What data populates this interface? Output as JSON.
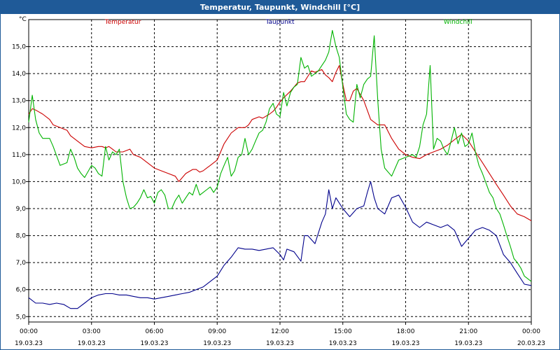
{
  "window": {
    "title": "Temperatur, Taupunkt, Windchill [°C]"
  },
  "chart_data": {
    "type": "line",
    "title": "Temperatur, Taupunkt, Windchill [°C]",
    "ylabel": "°C",
    "xlabel": "",
    "grid": true,
    "ylim": [
      4.8,
      16.0
    ],
    "xlim": [
      0,
      24
    ],
    "yticks": [
      "5,0",
      "6,0",
      "7,0",
      "8,0",
      "9,0",
      "10,0",
      "11,0",
      "12,0",
      "13,0",
      "14,0",
      "15,0"
    ],
    "xticks": [
      {
        "time": "00:00",
        "date": "19.03.23"
      },
      {
        "time": "03:00",
        "date": "19.03.23"
      },
      {
        "time": "06:00",
        "date": "19.03.23"
      },
      {
        "time": "09:00",
        "date": "19.03.23"
      },
      {
        "time": "12:00",
        "date": "19.03.23"
      },
      {
        "time": "15:00",
        "date": "19.03.23"
      },
      {
        "time": "18:00",
        "date": "19.03.23"
      },
      {
        "time": "21:00",
        "date": "19.03.23"
      },
      {
        "time": "00:00",
        "date": "20.03.23"
      }
    ],
    "series": [
      {
        "name": "Temperatur",
        "color": "#cc0000",
        "x": [
          0.0,
          0.17,
          0.33,
          0.67,
          1.0,
          1.17,
          1.5,
          1.83,
          2.0,
          2.33,
          2.67,
          3.0,
          3.33,
          3.5,
          3.67,
          3.83,
          4.0,
          4.17,
          4.5,
          4.83,
          5.0,
          5.33,
          5.67,
          6.0,
          6.33,
          6.67,
          7.0,
          7.17,
          7.5,
          7.83,
          8.0,
          8.17,
          8.33,
          8.5,
          8.67,
          9.0,
          9.33,
          9.5,
          9.67,
          10.0,
          10.33,
          10.5,
          10.67,
          11.0,
          11.17,
          11.5,
          11.67,
          11.83,
          12.0,
          12.17,
          12.5,
          12.67,
          12.83,
          13.0,
          13.17,
          13.33,
          13.5,
          13.67,
          13.83,
          14.0,
          14.17,
          14.33,
          14.5,
          14.67,
          14.83,
          15.0,
          15.17,
          15.33,
          15.5,
          15.67,
          16.0,
          16.33,
          16.67,
          16.83,
          17.0,
          17.33,
          17.67,
          18.0,
          18.33,
          18.67,
          19.0,
          19.33,
          19.67,
          20.0,
          20.33,
          20.67,
          21.0,
          21.33,
          21.67,
          22.0,
          22.33,
          22.67,
          23.0,
          23.33,
          23.67,
          24.0
        ],
        "y": [
          12.5,
          12.7,
          12.65,
          12.5,
          12.3,
          12.1,
          12.0,
          11.9,
          11.7,
          11.5,
          11.3,
          11.25,
          11.3,
          11.3,
          11.25,
          11.3,
          11.2,
          11.1,
          11.1,
          11.2,
          11.0,
          10.9,
          10.7,
          10.5,
          10.4,
          10.3,
          10.2,
          10.0,
          10.3,
          10.45,
          10.45,
          10.35,
          10.4,
          10.5,
          10.6,
          10.8,
          11.4,
          11.6,
          11.8,
          12.0,
          12.0,
          12.1,
          12.3,
          12.4,
          12.35,
          12.5,
          12.6,
          12.75,
          12.95,
          13.1,
          13.35,
          13.5,
          13.65,
          13.7,
          13.7,
          13.9,
          14.1,
          14.05,
          14.1,
          14.15,
          13.95,
          13.85,
          13.7,
          14.05,
          14.3,
          13.6,
          13.0,
          13.0,
          13.35,
          13.45,
          13.0,
          12.3,
          12.1,
          12.1,
          12.1,
          11.6,
          11.2,
          11.0,
          10.9,
          10.85,
          11.0,
          11.1,
          11.2,
          11.35,
          11.55,
          11.75,
          11.5,
          11.1,
          10.7,
          10.3,
          9.9,
          9.5,
          9.1,
          8.8,
          8.7,
          8.55
        ]
      },
      {
        "name": "Taupunkt",
        "color": "#00008b",
        "x": [
          0.0,
          0.33,
          0.67,
          1.0,
          1.33,
          1.67,
          2.0,
          2.33,
          2.67,
          3.0,
          3.33,
          3.67,
          4.0,
          4.33,
          4.67,
          5.0,
          5.33,
          5.67,
          6.0,
          6.33,
          6.67,
          7.0,
          7.33,
          7.67,
          8.0,
          8.33,
          8.67,
          9.0,
          9.33,
          9.67,
          10.0,
          10.33,
          10.67,
          11.0,
          11.33,
          11.67,
          12.0,
          12.17,
          12.33,
          12.67,
          13.0,
          13.17,
          13.33,
          13.67,
          14.0,
          14.17,
          14.33,
          14.5,
          14.67,
          15.0,
          15.33,
          15.67,
          16.0,
          16.17,
          16.33,
          16.5,
          16.67,
          17.0,
          17.33,
          17.67,
          18.0,
          18.33,
          18.67,
          19.0,
          19.33,
          19.67,
          20.0,
          20.33,
          20.67,
          21.0,
          21.33,
          21.67,
          22.0,
          22.33,
          22.67,
          23.0,
          23.33,
          23.67,
          24.0
        ],
        "y": [
          5.7,
          5.5,
          5.5,
          5.45,
          5.5,
          5.45,
          5.3,
          5.3,
          5.5,
          5.7,
          5.8,
          5.85,
          5.85,
          5.8,
          5.8,
          5.75,
          5.7,
          5.7,
          5.65,
          5.7,
          5.75,
          5.8,
          5.85,
          5.9,
          6.0,
          6.1,
          6.3,
          6.5,
          6.9,
          7.2,
          7.55,
          7.5,
          7.5,
          7.45,
          7.5,
          7.55,
          7.3,
          7.1,
          7.5,
          7.4,
          7.05,
          8.0,
          8.0,
          7.7,
          8.5,
          8.8,
          9.7,
          9.0,
          9.4,
          9.0,
          8.7,
          9.0,
          9.1,
          9.6,
          10.0,
          9.4,
          9.0,
          8.8,
          9.4,
          9.5,
          9.05,
          8.5,
          8.3,
          8.5,
          8.4,
          8.3,
          8.4,
          8.2,
          7.6,
          7.9,
          8.2,
          8.3,
          8.2,
          8.0,
          7.3,
          7.0,
          6.6,
          6.2,
          6.15
        ]
      },
      {
        "name": "Windchill",
        "color": "#00b300",
        "x": [
          0.0,
          0.17,
          0.33,
          0.5,
          0.67,
          1.0,
          1.17,
          1.5,
          1.83,
          2.0,
          2.17,
          2.33,
          2.5,
          2.67,
          3.0,
          3.17,
          3.33,
          3.5,
          3.67,
          3.83,
          4.0,
          4.17,
          4.33,
          4.5,
          4.67,
          4.83,
          5.0,
          5.17,
          5.33,
          5.5,
          5.67,
          5.83,
          6.0,
          6.17,
          6.33,
          6.5,
          6.67,
          6.83,
          7.0,
          7.17,
          7.33,
          7.5,
          7.67,
          7.83,
          8.0,
          8.17,
          8.33,
          8.5,
          8.67,
          8.83,
          9.0,
          9.17,
          9.33,
          9.5,
          9.67,
          9.83,
          10.0,
          10.17,
          10.33,
          10.5,
          10.67,
          10.83,
          11.0,
          11.17,
          11.33,
          11.5,
          11.67,
          11.83,
          12.0,
          12.17,
          12.33,
          12.5,
          12.67,
          12.83,
          13.0,
          13.17,
          13.33,
          13.5,
          13.67,
          13.83,
          14.0,
          14.17,
          14.33,
          14.5,
          14.67,
          14.83,
          15.0,
          15.17,
          15.33,
          15.5,
          15.67,
          15.83,
          16.0,
          16.17,
          16.33,
          16.5,
          16.67,
          16.83,
          17.0,
          17.33,
          17.67,
          18.0,
          18.33,
          18.5,
          18.67,
          18.83,
          19.0,
          19.17,
          19.33,
          19.5,
          19.67,
          19.83,
          20.0,
          20.17,
          20.33,
          20.5,
          20.67,
          20.83,
          21.0,
          21.17,
          21.33,
          21.5,
          21.67,
          22.0,
          22.17,
          22.33,
          22.5,
          22.67,
          22.83,
          23.0,
          23.17,
          23.33,
          23.5,
          23.67,
          24.0
        ],
        "y": [
          12.2,
          13.2,
          12.3,
          11.8,
          11.6,
          11.6,
          11.3,
          10.6,
          10.7,
          11.2,
          10.9,
          10.5,
          10.3,
          10.15,
          10.6,
          10.5,
          10.3,
          10.2,
          11.3,
          10.8,
          11.1,
          11.0,
          11.2,
          10.0,
          9.4,
          9.0,
          9.05,
          9.2,
          9.4,
          9.7,
          9.4,
          9.45,
          9.2,
          9.6,
          9.7,
          9.5,
          9.0,
          9.0,
          9.3,
          9.5,
          9.2,
          9.4,
          9.6,
          9.5,
          9.9,
          9.5,
          9.6,
          9.7,
          9.8,
          9.6,
          9.8,
          10.3,
          10.6,
          10.9,
          10.2,
          10.4,
          10.9,
          11.0,
          11.6,
          11.0,
          11.2,
          11.5,
          11.8,
          11.9,
          12.2,
          12.7,
          12.9,
          12.5,
          12.4,
          13.3,
          12.8,
          13.3,
          13.5,
          13.6,
          14.6,
          14.2,
          14.3,
          13.9,
          14.0,
          14.1,
          14.3,
          14.5,
          14.8,
          15.6,
          15.0,
          14.6,
          13.5,
          12.5,
          12.3,
          12.2,
          13.6,
          13.1,
          13.6,
          13.8,
          13.9,
          15.4,
          13.0,
          11.2,
          10.5,
          10.2,
          10.8,
          10.9,
          11.0,
          10.9,
          11.3,
          12.1,
          12.5,
          14.3,
          11.2,
          11.6,
          11.5,
          11.2,
          11.0,
          11.5,
          12.0,
          11.4,
          11.8,
          11.3,
          11.4,
          11.8,
          11.1,
          10.6,
          10.3,
          9.6,
          9.4,
          9.0,
          8.8,
          8.4,
          8.0,
          7.6,
          7.15,
          7.0,
          6.8,
          6.5,
          6.3
        ]
      }
    ]
  }
}
